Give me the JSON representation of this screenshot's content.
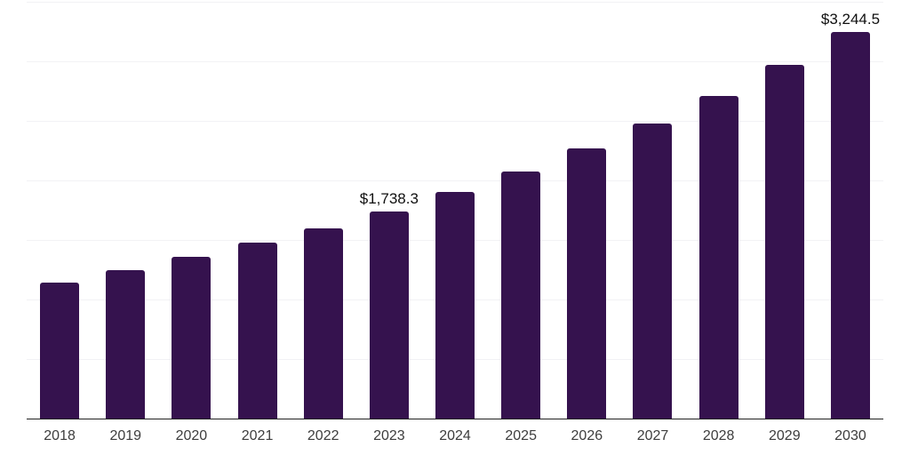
{
  "chart_data": {
    "type": "bar",
    "title": "",
    "xlabel": "",
    "ylabel": "",
    "categories": [
      "2018",
      "2019",
      "2020",
      "2021",
      "2022",
      "2023",
      "2024",
      "2025",
      "2026",
      "2027",
      "2028",
      "2029",
      "2030"
    ],
    "values": [
      1145,
      1250,
      1355,
      1475,
      1600,
      1738.3,
      1900,
      2078,
      2272,
      2480,
      2710,
      2970,
      3244.5
    ],
    "bar_labels": {
      "2023": "$1,738.3",
      "2030": "$3,244.5"
    },
    "ylim": [
      0,
      3500
    ],
    "gridline_values": [
      500,
      1000,
      1500,
      2000,
      2500,
      3000,
      3500
    ],
    "grid": "horizontal-only",
    "legend": "none",
    "y_axis_tick_labels_shown": false
  },
  "style": {
    "bar_color": "#35124E",
    "gridline_color": "#f2f2f5",
    "axis_line_color": "#222222",
    "tick_label_color": "#3d3d3d",
    "data_label_color": "#101010",
    "background_color": "#ffffff"
  }
}
